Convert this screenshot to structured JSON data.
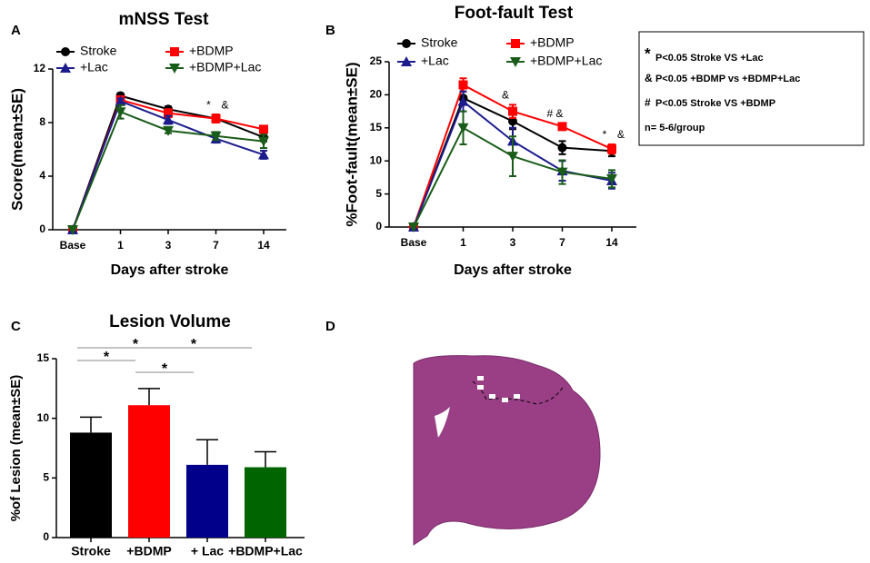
{
  "chart_data": [
    {
      "type": "line",
      "panel": "A",
      "title": "mNSS Test",
      "x_label": "Days after stroke",
      "y_label": "Score(mean±SE)",
      "categories": [
        "Base",
        "1",
        "3",
        "7",
        "14"
      ],
      "ylim": [
        0,
        12
      ],
      "yticks": [
        0,
        4,
        8,
        12
      ],
      "series": [
        {
          "name": "Stroke",
          "color": "#000000",
          "marker": "circle",
          "values": [
            0,
            10.0,
            9.0,
            8.3,
            6.9
          ],
          "errors": [
            0,
            0.2,
            0.2,
            0.3,
            0.3
          ]
        },
        {
          "name": "+BDMP",
          "color": "#ff0000",
          "marker": "square",
          "values": [
            0,
            9.7,
            8.7,
            8.3,
            7.5
          ],
          "errors": [
            0,
            0.2,
            0.3,
            0.3,
            0.2
          ]
        },
        {
          "name": "+Lac",
          "color": "#1c1c8c",
          "marker": "triangle-up",
          "values": [
            0,
            9.6,
            8.2,
            6.8,
            5.6
          ],
          "errors": [
            0,
            0.2,
            0.3,
            0.3,
            0.3
          ]
        },
        {
          "name": "+BDMP+Lac",
          "color": "#1a5c1a",
          "marker": "triangle-down",
          "values": [
            0,
            8.8,
            7.4,
            7.0,
            6.6
          ],
          "errors": [
            0,
            0.5,
            0.2,
            0.3,
            0.5
          ]
        }
      ],
      "annotations": [
        {
          "text": "*",
          "category": "7"
        },
        {
          "text": "&",
          "category": "7"
        }
      ]
    },
    {
      "type": "line",
      "panel": "B",
      "title": "Foot-fault Test",
      "x_label": "Days after stroke",
      "y_label": "%Foot-fault(mean±SE)",
      "categories": [
        "Base",
        "1",
        "3",
        "7",
        "14"
      ],
      "ylim": [
        0,
        25
      ],
      "yticks": [
        0,
        5,
        10,
        15,
        20,
        25
      ],
      "series": [
        {
          "name": "Stroke",
          "color": "#000000",
          "marker": "circle",
          "values": [
            0,
            19.5,
            16,
            12,
            11.5
          ],
          "errors": [
            0,
            1,
            1.2,
            1,
            0.8
          ]
        },
        {
          "name": "+BDMP",
          "color": "#ff0000",
          "marker": "square",
          "values": [
            0,
            21.5,
            17.5,
            15.2,
            11.8
          ],
          "errors": [
            0,
            1,
            1,
            0.5,
            0.7
          ]
        },
        {
          "name": "+Lac",
          "color": "#1c1c8c",
          "marker": "triangle-up",
          "values": [
            0,
            19,
            13,
            8.5,
            7
          ],
          "errors": [
            0,
            1.5,
            2,
            1.5,
            1.2
          ]
        },
        {
          "name": "+BDMP+Lac",
          "color": "#1a5c1a",
          "marker": "triangle-down",
          "values": [
            0,
            15,
            10.7,
            8.3,
            7.3
          ],
          "errors": [
            0,
            2.5,
            3,
            1.8,
            1.3
          ]
        }
      ],
      "annotations": [
        {
          "text": "&",
          "category": "3"
        },
        {
          "text": "# &",
          "category": "7"
        },
        {
          "text": "*",
          "category": "14"
        },
        {
          "text": "&",
          "category": "14"
        }
      ],
      "notes": [
        {
          "symbol": "*",
          "text": "P<0.05 Stroke VS +Lac"
        },
        {
          "symbol": "&",
          "text": "P<0.05 +BDMP  vs  +BDMP+Lac"
        },
        {
          "symbol": "#",
          "text": "P<0.05 Stroke VS +BDMP"
        },
        {
          "symbol": null,
          "text": "n= 5-6/group"
        }
      ]
    },
    {
      "type": "bar",
      "panel": "C",
      "title": "Lesion Volume",
      "y_label": "%of Lesion (mean±SE)",
      "categories": [
        "Stroke",
        "+BDMP",
        "+ Lac",
        "+BDMP+Lac"
      ],
      "ylim": [
        0,
        15
      ],
      "yticks": [
        0,
        5,
        10,
        15
      ],
      "values": [
        8.8,
        11.1,
        6.1,
        5.9
      ],
      "errors": [
        1.3,
        1.4,
        2.1,
        1.3
      ],
      "colors": [
        "#000000",
        "#ff0000",
        "#00008b",
        "#006400"
      ],
      "comparisons": [
        {
          "pair": [
            0,
            2
          ],
          "label": "*"
        },
        {
          "pair": [
            1,
            3
          ],
          "label": "*"
        },
        {
          "pair": [
            0,
            1
          ],
          "label": "*"
        },
        {
          "pair": [
            1,
            2
          ],
          "label": "*"
        }
      ]
    }
  ],
  "image_panel": {
    "panel": "D"
  }
}
